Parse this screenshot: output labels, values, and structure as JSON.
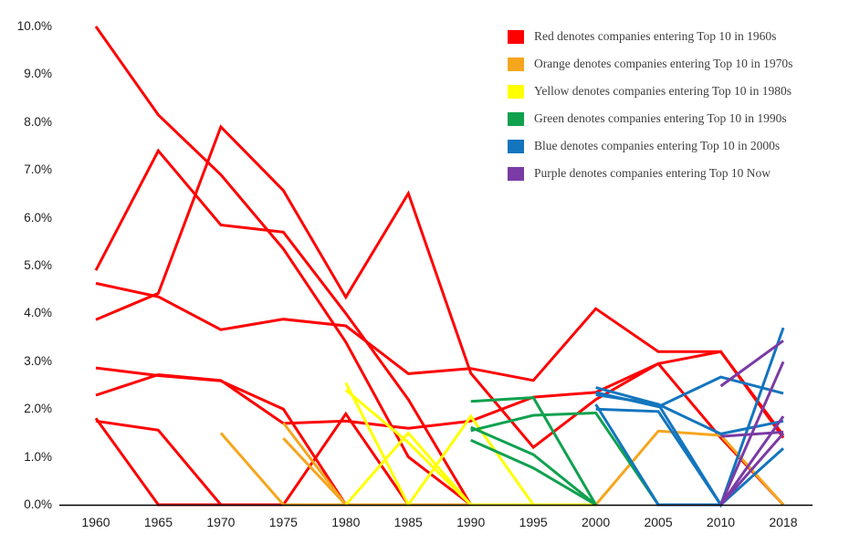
{
  "legend": {
    "items": [
      {
        "label": "Red denotes companies entering Top 10 in 1960s",
        "color": "#fe0000"
      },
      {
        "label": "Orange denotes companies entering Top 10 in 1970s",
        "color": "#f5a61d"
      },
      {
        "label": "Yellow denotes companies entering Top 10 in 1980s",
        "color": "#ffff00"
      },
      {
        "label": "Green denotes companies entering Top 10 in 1990s",
        "color": "#10a14f"
      },
      {
        "label": "Blue denotes companies entering Top 10 in 2000s",
        "color": "#1375be"
      },
      {
        "label": "Purple denotes companies entering Top 10 Now",
        "color": "#7a3ba5"
      }
    ]
  },
  "chart_data": {
    "type": "line",
    "title": "",
    "xlabel": "",
    "ylabel": "",
    "grid": false,
    "legend_position": "top-right",
    "x": [
      1960,
      1965,
      1970,
      1975,
      1980,
      1985,
      1990,
      1995,
      2000,
      2005,
      2010,
      2018
    ],
    "x_tick_labels": [
      "1960",
      "1965",
      "1970",
      "1975",
      "1980",
      "1985",
      "1990",
      "1995",
      "2000",
      "2005",
      "2010",
      "2018"
    ],
    "ylim": [
      0,
      10
    ],
    "y_tick_values": [
      0,
      1,
      2,
      3,
      4,
      5,
      6,
      7,
      8,
      9,
      10
    ],
    "y_tick_labels": [
      "0.0%",
      "1.0%",
      "2.0%",
      "3.0%",
      "4.0%",
      "5.0%",
      "6.0%",
      "7.0%",
      "8.0%",
      "9.0%",
      "10.0%"
    ],
    "unit": "percent of total market cap",
    "series": [
      {
        "name": "red-1960s-a",
        "group": "1960s",
        "color": "#fe0000",
        "values": [
          10.0,
          8.15,
          6.9,
          5.35,
          3.4,
          1.0,
          0,
          0,
          null,
          null,
          null,
          null
        ]
      },
      {
        "name": "red-1960s-b",
        "group": "1960s",
        "color": "#fe0000",
        "values": [
          4.9,
          7.4,
          5.85,
          5.7,
          4.0,
          2.2,
          0,
          0,
          0,
          null,
          null,
          null
        ]
      },
      {
        "name": "red-1960s-c",
        "group": "1960s",
        "color": "#fe0000",
        "values": [
          3.87,
          4.42,
          7.9,
          6.57,
          4.34,
          6.51,
          2.75,
          1.2,
          2.2,
          2.95,
          1.4,
          0
        ]
      },
      {
        "name": "red-1960s-d",
        "group": "1960s",
        "color": "#fe0000",
        "values": [
          4.63,
          4.35,
          3.66,
          3.88,
          3.74,
          2.74,
          2.85,
          2.6,
          4.1,
          3.2,
          3.2,
          1.4
        ]
      },
      {
        "name": "red-1960s-e",
        "group": "1960s",
        "color": "#fe0000",
        "values": [
          2.86,
          2.7,
          2.59,
          2.0,
          0,
          null,
          null,
          null,
          null,
          null,
          null,
          null
        ]
      },
      {
        "name": "red-1960s-f",
        "group": "1960s",
        "color": "#fe0000",
        "values": [
          2.29,
          2.72,
          2.6,
          1.7,
          1.75,
          1.6,
          1.75,
          2.25,
          2.35,
          2.95,
          3.2,
          1.45
        ]
      },
      {
        "name": "red-1960s-g",
        "group": "1960s",
        "color": "#fe0000",
        "values": [
          1.81,
          0,
          0,
          0,
          0,
          null,
          null,
          null,
          null,
          null,
          null,
          null
        ]
      },
      {
        "name": "red-1960s-h",
        "group": "1960s",
        "color": "#fe0000",
        "values": [
          1.75,
          1.56,
          0,
          0,
          1.9,
          0,
          null,
          null,
          null,
          null,
          null,
          null
        ]
      },
      {
        "name": "orange-1970s-a",
        "group": "1970s",
        "color": "#f5a61d",
        "values": [
          null,
          null,
          1.5,
          0,
          0,
          0,
          0,
          0,
          0,
          1.54,
          1.45,
          0
        ]
      },
      {
        "name": "orange-1970s-b",
        "group": "1970s",
        "color": "#f5a61d",
        "values": [
          null,
          null,
          null,
          1.71,
          0,
          null,
          null,
          null,
          null,
          null,
          null,
          null
        ]
      },
      {
        "name": "orange-1970s-c",
        "group": "1970s",
        "color": "#f5a61d",
        "values": [
          null,
          null,
          null,
          1.39,
          0,
          null,
          null,
          null,
          null,
          null,
          null,
          null
        ]
      },
      {
        "name": "yellow-1980s-a",
        "group": "1980s",
        "color": "#ffff00",
        "values": [
          null,
          null,
          null,
          null,
          2.55,
          0,
          1.85,
          0,
          null,
          null,
          null,
          null
        ]
      },
      {
        "name": "yellow-1980s-b",
        "group": "1980s",
        "color": "#ffff00",
        "values": [
          null,
          null,
          null,
          null,
          2.4,
          1.3,
          0,
          0,
          0,
          null,
          null,
          null
        ]
      },
      {
        "name": "yellow-1980s-c",
        "group": "1980s",
        "color": "#ffff00",
        "values": [
          null,
          null,
          null,
          null,
          0,
          1.5,
          0,
          null,
          null,
          null,
          null,
          null
        ]
      },
      {
        "name": "green-1990s-a",
        "group": "1990s",
        "color": "#10a14f",
        "values": [
          null,
          null,
          null,
          null,
          null,
          null,
          2.16,
          2.24,
          0,
          null,
          null,
          null
        ]
      },
      {
        "name": "green-1990s-b",
        "group": "1990s",
        "color": "#10a14f",
        "values": [
          null,
          null,
          null,
          null,
          null,
          null,
          1.62,
          1.05,
          0,
          null,
          null,
          null
        ]
      },
      {
        "name": "green-1990s-c",
        "group": "1990s",
        "color": "#10a14f",
        "values": [
          null,
          null,
          null,
          null,
          null,
          null,
          1.55,
          1.87,
          1.92,
          0,
          null,
          null
        ]
      },
      {
        "name": "green-1990s-d",
        "group": "1990s",
        "color": "#10a14f",
        "values": [
          null,
          null,
          null,
          null,
          null,
          null,
          1.35,
          0.77,
          0,
          null,
          null,
          null
        ]
      },
      {
        "name": "blue-2000s-a",
        "group": "2000s",
        "color": "#1375be",
        "values": [
          null,
          null,
          null,
          null,
          null,
          null,
          null,
          null,
          2.45,
          2.1,
          0,
          3.7
        ]
      },
      {
        "name": "blue-2000s-b",
        "group": "2000s",
        "color": "#1375be",
        "values": [
          null,
          null,
          null,
          null,
          null,
          null,
          null,
          null,
          2.35,
          2.05,
          2.67,
          2.33
        ]
      },
      {
        "name": "blue-2000s-c",
        "group": "2000s",
        "color": "#1375be",
        "values": [
          null,
          null,
          null,
          null,
          null,
          null,
          null,
          null,
          2.1,
          0,
          0,
          1.18
        ]
      },
      {
        "name": "blue-2000s-d",
        "group": "2000s",
        "color": "#1375be",
        "values": [
          null,
          null,
          null,
          null,
          null,
          null,
          null,
          null,
          2.3,
          2.1,
          1.48,
          1.75
        ]
      },
      {
        "name": "blue-2000s-e",
        "group": "2000s",
        "color": "#1375be",
        "values": [
          null,
          null,
          null,
          null,
          null,
          null,
          null,
          null,
          2.0,
          1.95,
          0,
          null
        ]
      },
      {
        "name": "purple-now-a",
        "group": "Now",
        "color": "#7a3ba5",
        "values": [
          null,
          null,
          null,
          null,
          null,
          null,
          null,
          null,
          null,
          null,
          2.48,
          3.43
        ]
      },
      {
        "name": "purple-now-b",
        "group": "Now",
        "color": "#7a3ba5",
        "values": [
          null,
          null,
          null,
          null,
          null,
          null,
          null,
          null,
          null,
          null,
          0,
          2.99
        ]
      },
      {
        "name": "purple-now-c",
        "group": "Now",
        "color": "#7a3ba5",
        "values": [
          null,
          null,
          null,
          null,
          null,
          null,
          null,
          null,
          null,
          null,
          0,
          1.85
        ]
      },
      {
        "name": "purple-now-d",
        "group": "Now",
        "color": "#7a3ba5",
        "values": [
          null,
          null,
          null,
          null,
          null,
          null,
          null,
          null,
          null,
          null,
          1.43,
          1.52
        ]
      },
      {
        "name": "purple-now-e",
        "group": "Now",
        "color": "#7a3ba5",
        "values": [
          null,
          null,
          null,
          null,
          null,
          null,
          null,
          null,
          null,
          null,
          0,
          1.49
        ]
      }
    ]
  }
}
